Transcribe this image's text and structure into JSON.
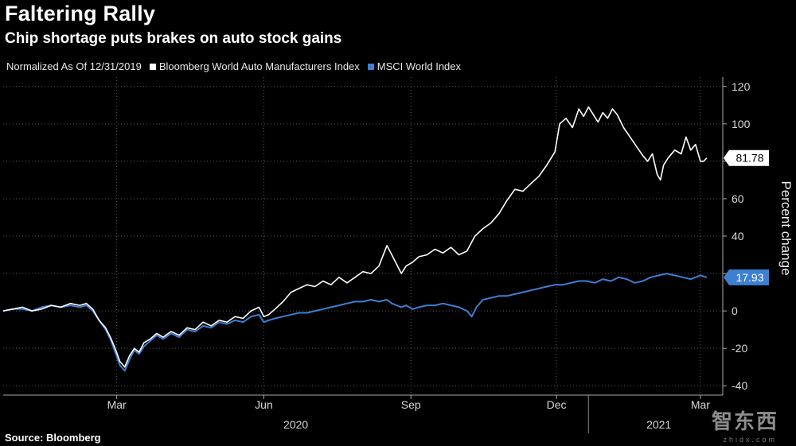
{
  "title": "Faltering Rally",
  "subtitle": "Chip shortage puts brakes on auto stock gains",
  "source": "Source: Bloomberg",
  "watermark": "智东西",
  "watermark_sub": "zhidx.com",
  "colors": {
    "auto": "#ffffff",
    "msci": "#3d7fd1",
    "background": "#000000"
  },
  "chart_data": {
    "type": "line",
    "title": "Faltering Rally",
    "subtitle": "Chip shortage puts brakes on auto stock gains",
    "legend_note": "Normalized As Of 12/31/2019",
    "ylabel": "Percent change",
    "xlabel": "",
    "ylim": [
      -45,
      125
    ],
    "yticks": [
      -40,
      -20,
      0,
      20,
      40,
      60,
      80,
      100,
      120
    ],
    "x_ticks": [
      {
        "label": "Mar",
        "day": 71
      },
      {
        "label": "Jun",
        "day": 163
      },
      {
        "label": "Sep",
        "day": 255
      },
      {
        "label": "Dec",
        "day": 346
      },
      {
        "label": "Mar",
        "day": 436
      }
    ],
    "year_labels": [
      {
        "label": "2020",
        "day": 183
      },
      {
        "label": "2021",
        "day": 410
      }
    ],
    "x_range_days": [
      0,
      450
    ],
    "series": [
      {
        "name": "Bloomberg World Auto Manufacturers Index",
        "color": "#ffffff",
        "last_value": "81.78",
        "points": [
          [
            0,
            0
          ],
          [
            6,
            1
          ],
          [
            12,
            2
          ],
          [
            18,
            0
          ],
          [
            24,
            1
          ],
          [
            30,
            3
          ],
          [
            36,
            2
          ],
          [
            42,
            4
          ],
          [
            48,
            3
          ],
          [
            52,
            4
          ],
          [
            56,
            1
          ],
          [
            60,
            -5
          ],
          [
            64,
            -9
          ],
          [
            67,
            -14
          ],
          [
            70,
            -20
          ],
          [
            73,
            -27
          ],
          [
            76,
            -30
          ],
          [
            79,
            -24
          ],
          [
            82,
            -20
          ],
          [
            85,
            -22
          ],
          [
            88,
            -17
          ],
          [
            92,
            -15
          ],
          [
            96,
            -12
          ],
          [
            100,
            -14
          ],
          [
            105,
            -11
          ],
          [
            110,
            -13
          ],
          [
            115,
            -9
          ],
          [
            120,
            -10
          ],
          [
            125,
            -6
          ],
          [
            130,
            -8
          ],
          [
            135,
            -5
          ],
          [
            140,
            -6
          ],
          [
            145,
            -3
          ],
          [
            150,
            -4
          ],
          [
            155,
            0
          ],
          [
            160,
            2
          ],
          [
            163,
            -3
          ],
          [
            166,
            -2
          ],
          [
            170,
            1
          ],
          [
            175,
            5
          ],
          [
            180,
            10
          ],
          [
            185,
            12
          ],
          [
            190,
            14
          ],
          [
            195,
            13
          ],
          [
            200,
            16
          ],
          [
            205,
            14
          ],
          [
            210,
            18
          ],
          [
            215,
            15
          ],
          [
            220,
            18
          ],
          [
            225,
            21
          ],
          [
            230,
            20
          ],
          [
            235,
            24
          ],
          [
            240,
            35
          ],
          [
            243,
            30
          ],
          [
            246,
            25
          ],
          [
            249,
            20
          ],
          [
            252,
            24
          ],
          [
            256,
            26
          ],
          [
            260,
            29
          ],
          [
            265,
            30
          ],
          [
            270,
            33
          ],
          [
            275,
            31
          ],
          [
            280,
            34
          ],
          [
            285,
            30
          ],
          [
            290,
            32
          ],
          [
            295,
            40
          ],
          [
            300,
            44
          ],
          [
            305,
            47
          ],
          [
            310,
            52
          ],
          [
            315,
            59
          ],
          [
            320,
            65
          ],
          [
            325,
            64
          ],
          [
            330,
            68
          ],
          [
            335,
            72
          ],
          [
            340,
            78
          ],
          [
            345,
            85
          ],
          [
            348,
            100
          ],
          [
            352,
            103
          ],
          [
            356,
            98
          ],
          [
            360,
            108
          ],
          [
            363,
            104
          ],
          [
            366,
            109
          ],
          [
            369,
            105
          ],
          [
            372,
            101
          ],
          [
            375,
            106
          ],
          [
            378,
            103
          ],
          [
            381,
            108
          ],
          [
            384,
            105
          ],
          [
            388,
            98
          ],
          [
            392,
            93
          ],
          [
            396,
            88
          ],
          [
            400,
            83
          ],
          [
            403,
            80
          ],
          [
            406,
            84
          ],
          [
            409,
            73
          ],
          [
            411,
            70
          ],
          [
            413,
            78
          ],
          [
            416,
            82
          ],
          [
            420,
            86
          ],
          [
            424,
            84
          ],
          [
            427,
            93
          ],
          [
            430,
            86
          ],
          [
            433,
            89
          ],
          [
            436,
            80
          ],
          [
            438,
            80
          ],
          [
            440,
            81.78
          ]
        ]
      },
      {
        "name": "MSCI World Index",
        "color": "#3d7fd1",
        "last_value": "17.93",
        "points": [
          [
            0,
            0
          ],
          [
            6,
            1
          ],
          [
            12,
            1
          ],
          [
            18,
            0
          ],
          [
            24,
            2
          ],
          [
            30,
            3
          ],
          [
            36,
            2
          ],
          [
            42,
            3
          ],
          [
            48,
            2
          ],
          [
            52,
            3
          ],
          [
            56,
            0
          ],
          [
            60,
            -5
          ],
          [
            64,
            -10
          ],
          [
            67,
            -15
          ],
          [
            70,
            -22
          ],
          [
            73,
            -29
          ],
          [
            76,
            -32
          ],
          [
            79,
            -26
          ],
          [
            82,
            -21
          ],
          [
            85,
            -23
          ],
          [
            88,
            -19
          ],
          [
            92,
            -16
          ],
          [
            96,
            -13
          ],
          [
            100,
            -15
          ],
          [
            105,
            -12
          ],
          [
            110,
            -14
          ],
          [
            115,
            -10
          ],
          [
            120,
            -11
          ],
          [
            125,
            -8
          ],
          [
            130,
            -9
          ],
          [
            135,
            -6
          ],
          [
            140,
            -7
          ],
          [
            145,
            -5
          ],
          [
            150,
            -6
          ],
          [
            155,
            -3
          ],
          [
            160,
            -2
          ],
          [
            163,
            -6
          ],
          [
            166,
            -5
          ],
          [
            170,
            -4
          ],
          [
            175,
            -3
          ],
          [
            180,
            -2
          ],
          [
            185,
            -1
          ],
          [
            190,
            -1
          ],
          [
            195,
            0
          ],
          [
            200,
            1
          ],
          [
            205,
            2
          ],
          [
            210,
            3
          ],
          [
            215,
            4
          ],
          [
            220,
            5
          ],
          [
            225,
            5
          ],
          [
            230,
            6
          ],
          [
            235,
            5
          ],
          [
            240,
            6
          ],
          [
            243,
            4
          ],
          [
            246,
            3
          ],
          [
            249,
            2
          ],
          [
            252,
            3
          ],
          [
            256,
            1
          ],
          [
            260,
            2
          ],
          [
            265,
            3
          ],
          [
            270,
            3
          ],
          [
            275,
            4
          ],
          [
            280,
            3
          ],
          [
            285,
            2
          ],
          [
            290,
            0
          ],
          [
            293,
            -3
          ],
          [
            296,
            2
          ],
          [
            300,
            6
          ],
          [
            305,
            7
          ],
          [
            310,
            8
          ],
          [
            315,
            8
          ],
          [
            320,
            9
          ],
          [
            325,
            10
          ],
          [
            330,
            11
          ],
          [
            335,
            12
          ],
          [
            340,
            13
          ],
          [
            345,
            14
          ],
          [
            350,
            14
          ],
          [
            355,
            15
          ],
          [
            360,
            16
          ],
          [
            365,
            16
          ],
          [
            370,
            15
          ],
          [
            375,
            17
          ],
          [
            380,
            16
          ],
          [
            385,
            18
          ],
          [
            390,
            17
          ],
          [
            395,
            15
          ],
          [
            400,
            16
          ],
          [
            405,
            18
          ],
          [
            410,
            19
          ],
          [
            415,
            20
          ],
          [
            420,
            19
          ],
          [
            425,
            18
          ],
          [
            430,
            17
          ],
          [
            433,
            18
          ],
          [
            436,
            19
          ],
          [
            440,
            17.93
          ]
        ]
      }
    ]
  }
}
